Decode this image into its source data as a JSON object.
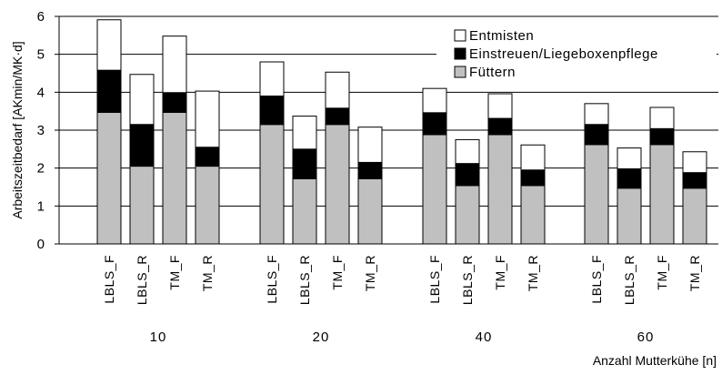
{
  "chart_data": {
    "type": "bar",
    "stacked": true,
    "ylabel": "Arbeitszeitbedarf [AKmin/MK·d]",
    "xlabel": "Anzahl Mutterkühe [n]",
    "ylim": [
      0,
      6
    ],
    "yticks": [
      "0",
      "1",
      "2",
      "3",
      "4",
      "5",
      "6"
    ],
    "grid": "horizontal",
    "legend_position": "top-right",
    "groups": [
      {
        "label": "10",
        "categories": [
          "LBLS_F",
          "LBLS_R",
          "TM_F",
          "TM_R"
        ]
      },
      {
        "label": "20",
        "categories": [
          "LBLS_F",
          "LBLS_R",
          "TM_F",
          "TM_R"
        ]
      },
      {
        "label": "40",
        "categories": [
          "LBLS_F",
          "LBLS_R",
          "TM_F",
          "TM_R"
        ]
      },
      {
        "label": "60",
        "categories": [
          "LBLS_F",
          "LBLS_R",
          "TM_F",
          "TM_R"
        ]
      }
    ],
    "series": [
      {
        "name": "Füttern",
        "color": "#c0c0c0",
        "values": [
          3.47,
          2.05,
          3.47,
          2.05,
          3.15,
          1.72,
          3.15,
          1.72,
          2.88,
          1.54,
          2.88,
          1.54,
          2.62,
          1.47,
          2.62,
          1.47
        ]
      },
      {
        "name": "Einstreuen/Liegeboxenpflege",
        "color": "#000000",
        "values": [
          1.11,
          1.1,
          0.52,
          0.5,
          0.75,
          0.78,
          0.43,
          0.43,
          0.58,
          0.58,
          0.43,
          0.41,
          0.53,
          0.51,
          0.42,
          0.41
        ]
      },
      {
        "name": "Entmisten",
        "color": "#ffffff",
        "values": [
          1.33,
          1.32,
          1.49,
          1.48,
          0.9,
          0.87,
          0.95,
          0.93,
          0.64,
          0.63,
          0.65,
          0.66,
          0.55,
          0.55,
          0.56,
          0.55
        ]
      }
    ]
  }
}
